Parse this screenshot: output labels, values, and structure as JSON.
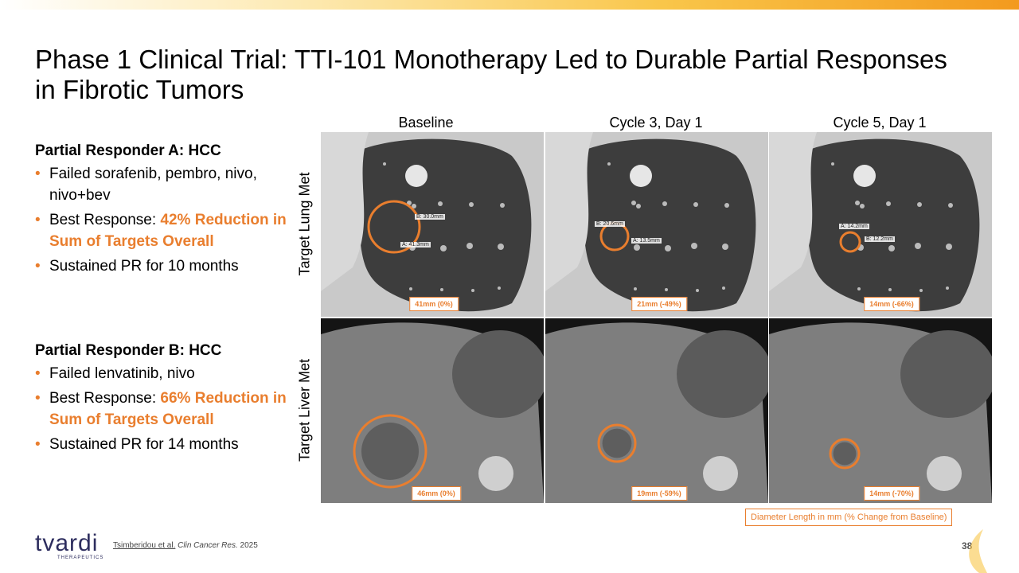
{
  "header": {
    "title": "Phase 1 Clinical Trial: TTI-101 Monotherapy Led to Durable Partial Responses in Fibrotic Tumors"
  },
  "responders": [
    {
      "heading": "Partial Responder A: HCC",
      "bullets": [
        {
          "text": "Failed sorafenib, pembro, nivo, nivo+bev"
        },
        {
          "text": "Best Response: ",
          "highlight": "42% Reduction in Sum of Targets Overall"
        },
        {
          "text": "Sustained PR for 10 months"
        }
      ]
    },
    {
      "heading": "Partial Responder B: HCC",
      "bullets": [
        {
          "text": "Failed lenvatinib, nivo"
        },
        {
          "text": "Best Response: ",
          "highlight": "66% Reduction in Sum of Targets Overall"
        },
        {
          "text": "Sustained PR for 14 months"
        }
      ]
    }
  ],
  "columns": [
    "Baseline",
    "Cycle 3, Day 1",
    "Cycle 5, Day 1"
  ],
  "rows": [
    {
      "label": "Target Lung Met",
      "images": [
        {
          "label": "41mm (0%)",
          "measurements": [
            "B: 30.0mm",
            "A: 41.3mm"
          ]
        },
        {
          "label": "21mm (-49%)",
          "measurements": [
            "B: 20.6mm",
            "A: 13.5mm"
          ]
        },
        {
          "label": "14mm (-66%)",
          "measurements": [
            "A: 14.2mm",
            "B: 12.2mm"
          ]
        }
      ]
    },
    {
      "label": "Target Liver Met",
      "images": [
        {
          "label": "46mm (0%)",
          "measurements": []
        },
        {
          "label": "19mm (-59%)",
          "measurements": []
        },
        {
          "label": "14mm (-70%)",
          "measurements": []
        }
      ]
    }
  ],
  "legend": "Diameter Length in mm (% Change from Baseline)",
  "citation": {
    "authors": "Tsimberidou et al.",
    "journal": "Clin Cancer Res.",
    "year": "2025"
  },
  "logo": {
    "name": "tvardi",
    "tagline": "THERAPEUTICS"
  },
  "page_number": "38"
}
